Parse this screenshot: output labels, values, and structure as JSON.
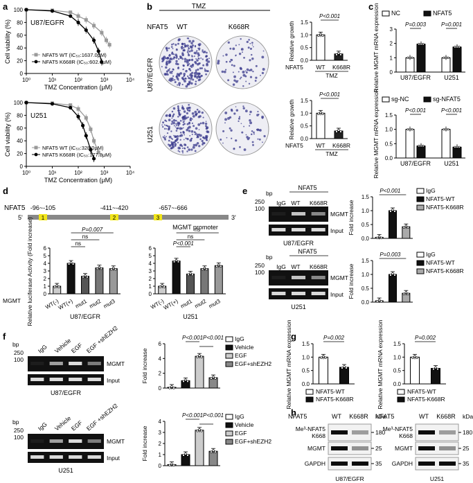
{
  "panels": {
    "a": {
      "label": "a",
      "plots": [
        {
          "cell": "U87/EGFR",
          "ylabel": "Cell viability (%)",
          "xlabel": "TMZ Concentration (μM)",
          "yticks": [
            "0",
            "20",
            "40",
            "60",
            "80",
            "100"
          ],
          "xticks": [
            "10⁰",
            "10¹",
            "10²",
            "10³",
            "10⁴"
          ],
          "legend": [
            "NFAT5 WT (IC₅₀:1637.0μM)",
            "NFAT5 K668R (IC₅₀:602.6μM)"
          ]
        },
        {
          "cell": "U251",
          "ylabel": "Cell viability (%)",
          "xlabel": "TMZ Concentration (μM)",
          "yticks": [
            "0",
            "20",
            "40",
            "60",
            "80",
            "100"
          ],
          "xticks": [
            "10⁰",
            "10¹",
            "10²",
            "10³",
            "10⁴"
          ],
          "legend": [
            "NFAT5 WT (IC₅₀:328.0μM)",
            "NFAT5 K668R (IC₅₀:177.8μM)"
          ]
        }
      ]
    },
    "b": {
      "label": "b",
      "treatment": "TMZ",
      "factor": "NFAT5",
      "groups": [
        "WT",
        "K668R"
      ],
      "rows": [
        "U87/EGFR",
        "U251"
      ],
      "ylabel": "Relative growth",
      "pvalue": "P<0.001",
      "yticks": [
        "0.0",
        "0.5",
        "1.0",
        "1.5"
      ],
      "xaxis_title": "NFAT5",
      "xaxis_sub": "TMZ"
    },
    "c": {
      "label": "c",
      "top": {
        "legend": [
          "NC",
          "NFAT5"
        ],
        "p": [
          "P=0.003",
          "P=0.001"
        ],
        "ylabel": "Relative MGMT mRNA expression",
        "yticks": [
          "0",
          "1",
          "2",
          "3"
        ],
        "cats": [
          "U87/EGFR",
          "U251"
        ]
      },
      "bottom": {
        "legend": [
          "sg-NC",
          "sg-NFAT5"
        ],
        "p": [
          "P<0.001",
          "P<0.001"
        ],
        "ylabel": "Relative MGMT mRNA expression",
        "yticks": [
          "0.0",
          "0.5",
          "1.0",
          "1.5"
        ],
        "cats": [
          "U87/EGFR",
          "U251"
        ]
      }
    },
    "d": {
      "label": "d",
      "factor": "NFAT5",
      "sites": [
        "-96~-105",
        "-411~-420",
        "-657~-666"
      ],
      "site_nums": [
        "1",
        "2",
        "3"
      ],
      "end5": "5'",
      "end3": "3'",
      "promoter": "MGMT promoter",
      "ylabel": "Relative luciferase Activity (Fold increase)",
      "yticks": [
        "0",
        "1",
        "2",
        "3",
        "4",
        "5",
        "6"
      ],
      "xprefix": "MGMT",
      "cats": [
        "WT(-)",
        "WT(+)",
        "mut1",
        "mut2",
        "mut3"
      ],
      "cells": [
        "U87/EGFR",
        "U251"
      ],
      "stats": [
        "P=0.007",
        "ns",
        "ns",
        "P<0.001"
      ],
      "stats_u251": [
        "ns",
        "ns",
        "P<0.001"
      ]
    },
    "e": {
      "label": "e",
      "bp": "bp",
      "marker_hi": "250",
      "marker_lo": "100",
      "lanes": [
        "IgG",
        "WT",
        "K668R"
      ],
      "factor": "NFAT5",
      "bands": [
        "MGMT",
        "Input"
      ],
      "cells": [
        "U87/EGFR",
        "U251"
      ],
      "ylabel": "Fold increase",
      "yticks": [
        "0.0",
        "0.5",
        "1.0",
        "1.5"
      ],
      "legend": [
        "IgG",
        "NFAT5-WT",
        "NFAT5-K668R"
      ],
      "p": [
        "P<0.001",
        "P=0.003"
      ]
    },
    "f": {
      "label": "f",
      "bp": "bp",
      "marker_hi": "250",
      "marker_lo": "100",
      "lanes": [
        "IgG",
        "Vehicle",
        "EGF",
        "EGF +shEZH2"
      ],
      "bands": [
        "MGMT",
        "Input"
      ],
      "cells": [
        "U87/EGFR",
        "U251"
      ],
      "ylabel": "Fold increase",
      "yticks_top": [
        "0",
        "2",
        "4",
        "6"
      ],
      "yticks_bot": [
        "0",
        "1",
        "2",
        "3",
        "4"
      ],
      "legend": [
        "IgG",
        "Vehicle",
        "EGF",
        "EGF+shEZH2"
      ],
      "p": [
        "P<0.001",
        "P<0.001"
      ]
    },
    "g": {
      "label": "g",
      "ylabel": "Relative MGMT mRNA expression",
      "yticks": [
        "0.0",
        "0.5",
        "1.0",
        "1.5"
      ],
      "p": [
        "P=0.002",
        "P=0.002"
      ],
      "legend": [
        "NFAT5-WT",
        "NFAT5-K668R"
      ]
    },
    "h": {
      "label": "h",
      "factor": "NFAT5",
      "lanes": [
        "WT",
        "K668R"
      ],
      "kda": "kDa",
      "rows": [
        "Me³-NFAT5 K668",
        "MGMT",
        "GAPDH"
      ],
      "markers": [
        "180",
        "25",
        "35"
      ],
      "cells": [
        "U87/EGFR",
        "U251"
      ]
    }
  },
  "chart_data": [
    {
      "type": "scatter",
      "title": "U87/EGFR",
      "xlabel": "TMZ Concentration (μM)",
      "ylabel": "Cell viability (%)",
      "xscale": "log",
      "xlim": [
        1,
        10000
      ],
      "ylim": [
        0,
        100
      ],
      "series": [
        {
          "name": "NFAT5 WT (IC₅₀:1637.0μM)",
          "x": [
            1,
            10,
            50,
            100,
            200,
            400,
            800,
            1200,
            1600
          ],
          "y": [
            100,
            99,
            96,
            90,
            84,
            75,
            64,
            52,
            45
          ]
        },
        {
          "name": "NFAT5 K668R (IC₅₀:602.6μM)",
          "x": [
            1,
            10,
            50,
            100,
            200,
            400,
            600,
            800
          ],
          "y": [
            100,
            98,
            90,
            80,
            68,
            52,
            35,
            18
          ]
        }
      ]
    },
    {
      "type": "scatter",
      "title": "U251",
      "xlabel": "TMZ Concentration (μM)",
      "ylabel": "Cell viability (%)",
      "xscale": "log",
      "xlim": [
        1,
        10000
      ],
      "ylim": [
        0,
        100
      ],
      "series": [
        {
          "name": "NFAT5 WT (IC₅₀:328.0μM)",
          "x": [
            1,
            10,
            50,
            100,
            200,
            300,
            400,
            600
          ],
          "y": [
            100,
            99,
            96,
            90,
            76,
            58,
            40,
            22
          ]
        },
        {
          "name": "NFAT5 K668R (IC₅₀:177.8μM)",
          "x": [
            1,
            10,
            50,
            100,
            150,
            200,
            300,
            400
          ],
          "y": [
            100,
            98,
            92,
            78,
            64,
            48,
            26,
            12
          ]
        }
      ]
    },
    {
      "type": "bar",
      "title": "U87/EGFR",
      "categories": [
        "WT",
        "K668R"
      ],
      "values": [
        1.0,
        0.25
      ],
      "ylabel": "Relative growth",
      "ylim": [
        0,
        1.5
      ]
    },
    {
      "type": "bar",
      "title": "U251",
      "categories": [
        "WT",
        "K668R"
      ],
      "values": [
        1.0,
        0.3
      ],
      "ylabel": "Relative growth",
      "ylim": [
        0,
        1.5
      ]
    },
    {
      "type": "bar",
      "categories": [
        "U87/EGFR",
        "U251"
      ],
      "ylabel": "Relative MGMT mRNA expression",
      "ylim": [
        0,
        3
      ],
      "series": [
        {
          "name": "NC",
          "values": [
            1.0,
            1.0
          ]
        },
        {
          "name": "NFAT5",
          "values": [
            1.95,
            1.75
          ]
        }
      ]
    },
    {
      "type": "bar",
      "categories": [
        "U87/EGFR",
        "U251"
      ],
      "ylabel": "Relative MGMT mRNA expression",
      "ylim": [
        0,
        1.5
      ],
      "series": [
        {
          "name": "sg-NC",
          "values": [
            1.0,
            1.0
          ]
        },
        {
          "name": "sg-NFAT5",
          "values": [
            0.42,
            0.38
          ]
        }
      ]
    },
    {
      "type": "bar",
      "title": "U87/EGFR",
      "categories": [
        "WT(-)",
        "WT(+)",
        "mut1",
        "mut2",
        "mut3"
      ],
      "values": [
        1.0,
        4.0,
        2.3,
        3.4,
        3.3
      ],
      "ylabel": "Relative luciferase Activity (Fold increase)",
      "ylim": [
        0,
        6
      ]
    },
    {
      "type": "bar",
      "title": "U251",
      "categories": [
        "WT(-)",
        "WT(+)",
        "mut1",
        "mut2",
        "mut3"
      ],
      "values": [
        1.0,
        4.3,
        2.6,
        3.3,
        3.7
      ],
      "ylabel": "Relative luciferase Activity (Fold increase)",
      "ylim": [
        0,
        6
      ]
    },
    {
      "type": "bar",
      "title": "U87/EGFR",
      "categories": [
        "IgG",
        "NFAT5-WT",
        "NFAT5-K668R"
      ],
      "values": [
        0.04,
        1.0,
        0.42
      ],
      "ylabel": "Fold increase",
      "ylim": [
        0,
        1.5
      ]
    },
    {
      "type": "bar",
      "title": "U251",
      "categories": [
        "IgG",
        "NFAT5-WT",
        "NFAT5-K668R"
      ],
      "values": [
        0.05,
        1.0,
        0.32
      ],
      "ylabel": "Fold increase",
      "ylim": [
        0,
        1.5
      ]
    },
    {
      "type": "bar",
      "title": "U87/EGFR",
      "categories": [
        "IgG",
        "Vehicle",
        "EGF",
        "EGF+shEZH2"
      ],
      "values": [
        0.1,
        1.0,
        4.3,
        1.4
      ],
      "ylabel": "Fold increase",
      "ylim": [
        0,
        6
      ]
    },
    {
      "type": "bar",
      "title": "U251",
      "categories": [
        "IgG",
        "Vehicle",
        "EGF",
        "EGF+shEZH2"
      ],
      "values": [
        0.1,
        1.0,
        3.2,
        1.3
      ],
      "ylabel": "Fold increase",
      "ylim": [
        0,
        4
      ]
    },
    {
      "type": "bar",
      "categories": [
        "NFAT5-WT",
        "NFAT5-K668R"
      ],
      "values": [
        1.0,
        0.62
      ],
      "ylabel": "Relative MGMT mRNA expression",
      "ylim": [
        0,
        1.5
      ]
    },
    {
      "type": "bar",
      "categories": [
        "NFAT5-WT",
        "NFAT5-K668R"
      ],
      "values": [
        1.0,
        0.58
      ],
      "ylabel": "Relative MGMT mRNA expression",
      "ylim": [
        0,
        1.5
      ]
    }
  ]
}
